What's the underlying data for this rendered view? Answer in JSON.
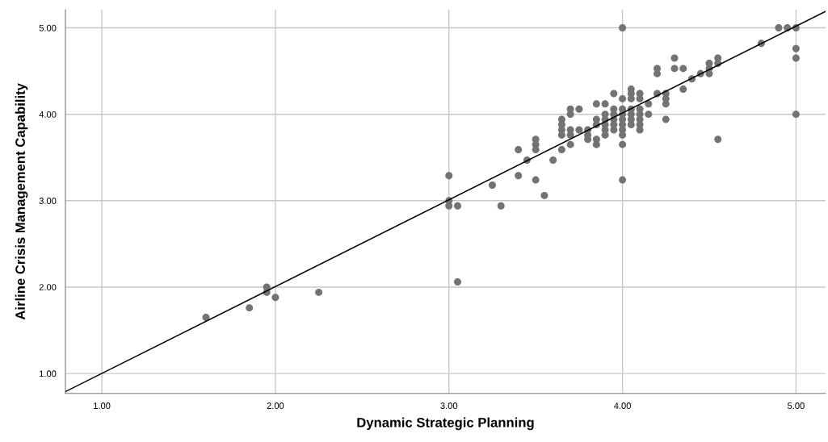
{
  "chart_data": {
    "type": "scatter",
    "xlabel": "Dynamic Strategic Planning",
    "ylabel": "Airline Crisis Management Capability",
    "xlim": [
      0.79,
      5.17
    ],
    "ylim": [
      0.77,
      5.21
    ],
    "xticks": [
      {
        "value": 1,
        "label": "1.00"
      },
      {
        "value": 2,
        "label": "2.00"
      },
      {
        "value": 3,
        "label": "3.00"
      },
      {
        "value": 4,
        "label": "4.00"
      },
      {
        "value": 5,
        "label": "5.00"
      }
    ],
    "yticks": [
      {
        "value": 1,
        "label": "1.00"
      },
      {
        "value": 2,
        "label": "2.00"
      },
      {
        "value": 3,
        "label": "3.00"
      },
      {
        "value": 4,
        "label": "4.00"
      },
      {
        "value": 5,
        "label": "5.00"
      }
    ],
    "grid": true,
    "series": [
      {
        "color": "#737373",
        "marker": "circle",
        "x": [
          1.6,
          1.85,
          1.95,
          1.95,
          2.0,
          2.25,
          3.0,
          3.0,
          3.0,
          3.05,
          3.05,
          3.25,
          3.3,
          3.4,
          3.4,
          3.45,
          3.5,
          3.5,
          3.5,
          3.5,
          3.55,
          3.6,
          3.65,
          3.65,
          3.65,
          3.65,
          3.65,
          3.7,
          3.7,
          3.7,
          3.7,
          3.7,
          3.75,
          3.75,
          3.8,
          3.8,
          3.8,
          3.85,
          3.85,
          3.85,
          3.85,
          3.85,
          3.9,
          3.9,
          3.9,
          3.9,
          3.9,
          3.9,
          3.95,
          3.95,
          3.95,
          3.95,
          3.95,
          3.95,
          4.0,
          4.0,
          4.0,
          4.0,
          4.0,
          4.0,
          4.0,
          4.0,
          4.0,
          4.0,
          4.05,
          4.05,
          4.05,
          4.05,
          4.05,
          4.05,
          4.05,
          4.1,
          4.1,
          4.1,
          4.1,
          4.1,
          4.1,
          4.1,
          4.15,
          4.15,
          4.2,
          4.2,
          4.2,
          4.25,
          4.25,
          4.25,
          4.25,
          4.3,
          4.3,
          4.35,
          4.35,
          4.4,
          4.45,
          4.5,
          4.5,
          4.5,
          4.55,
          4.55,
          4.55,
          4.8,
          4.9,
          4.95,
          5.0,
          5.0,
          5.0,
          5.0
        ],
        "values": [
          1.65,
          1.76,
          2.0,
          1.94,
          1.88,
          1.94,
          3.29,
          3.0,
          2.94,
          2.94,
          2.06,
          3.18,
          2.94,
          3.59,
          3.29,
          3.47,
          3.71,
          3.65,
          3.59,
          3.24,
          3.06,
          3.47,
          3.59,
          3.94,
          3.88,
          3.82,
          3.76,
          4.06,
          4.0,
          3.82,
          3.76,
          3.65,
          4.06,
          3.82,
          3.82,
          3.76,
          3.71,
          4.12,
          3.94,
          3.88,
          3.71,
          3.65,
          4.12,
          4.0,
          3.94,
          3.88,
          3.82,
          3.76,
          4.24,
          4.06,
          4.0,
          3.94,
          3.88,
          3.82,
          5.0,
          4.18,
          4.06,
          4.0,
          3.94,
          3.88,
          3.82,
          3.76,
          3.65,
          3.24,
          4.29,
          4.24,
          4.18,
          4.06,
          4.0,
          3.94,
          3.88,
          4.24,
          4.18,
          4.06,
          4.0,
          3.94,
          3.88,
          3.82,
          4.12,
          4.0,
          4.53,
          4.47,
          4.24,
          4.24,
          4.18,
          4.12,
          3.94,
          4.65,
          4.53,
          4.53,
          4.29,
          4.41,
          4.47,
          4.59,
          4.53,
          4.47,
          4.65,
          4.59,
          3.71,
          4.82,
          5.0,
          5.0,
          5.0,
          4.76,
          4.65,
          4.0
        ]
      },
      {
        "type": "line",
        "color": "#000000",
        "x": [
          0.79,
          5.17
        ],
        "values": [
          0.79,
          5.19
        ]
      }
    ]
  }
}
